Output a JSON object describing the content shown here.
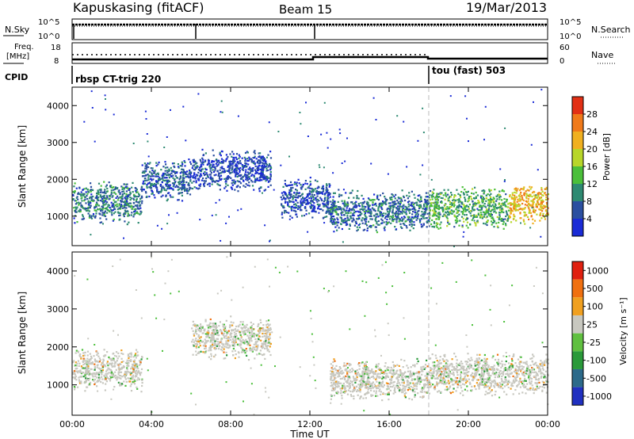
{
  "header": {
    "site": "Kapuskasing (fitACF)",
    "beam": "Beam 15",
    "date": "19/Mar/2013"
  },
  "nsky_panel": {
    "left_label": "N.Sky",
    "right_label": "N.Search",
    "left_ticks": [
      "10^5",
      "10^0"
    ],
    "right_ticks": [
      "10^5",
      "10^0"
    ]
  },
  "freq_panel": {
    "left_label_line1": "Freq.",
    "left_label_line2": "[MHz]",
    "right_label": "Nave",
    "left_ticks": [
      "18",
      "8"
    ],
    "right_ticks": [
      "60",
      "0"
    ]
  },
  "cpid_panel": {
    "label": "CPID",
    "programs": [
      {
        "name": "rbsp CT-trig 220",
        "start_hour": 0
      },
      {
        "name": "tou (fast) 503",
        "start_hour": 18
      }
    ]
  },
  "x_axis": {
    "label": "Time UT",
    "ticks": [
      "00:00",
      "04:00",
      "08:00",
      "12:00",
      "16:00",
      "20:00",
      "00:00"
    ]
  },
  "chart_data": [
    {
      "type": "heatmap",
      "name": "power",
      "ylabel": "Slant Range [km]",
      "yticks": [
        "1000",
        "2000",
        "3000",
        "4000"
      ],
      "ylim": [
        200,
        4500
      ],
      "xlim_hours": [
        0,
        24
      ],
      "colorbar": {
        "title": "Power [dB]",
        "ticks": [
          "4",
          "8",
          "12",
          "16",
          "20",
          "24",
          "28"
        ],
        "range": [
          0,
          30
        ],
        "colors": [
          "#1a2bd6",
          "#2b4fa0",
          "#2e8a72",
          "#4bbf3a",
          "#b8d62a",
          "#f0b020",
          "#f07a1a",
          "#e23015"
        ]
      },
      "echo_regions": [
        {
          "t_start": 0.0,
          "t_end": 3.5,
          "range_center_km": 1400,
          "value": 8
        },
        {
          "t_start": 3.5,
          "t_end": 6.0,
          "range_center_km": 2000,
          "value": 6
        },
        {
          "t_start": 6.0,
          "t_end": 10.0,
          "range_center_km": 2250,
          "value": 4
        },
        {
          "t_start": 10.5,
          "t_end": 13.0,
          "range_center_km": 1500,
          "value": 5
        },
        {
          "t_start": 13.0,
          "t_end": 18.0,
          "range_center_km": 1150,
          "value": 7
        },
        {
          "t_start": 18.0,
          "t_end": 22.0,
          "range_center_km": 1250,
          "value": 12
        },
        {
          "t_start": 22.0,
          "t_end": 24.0,
          "range_center_km": 1350,
          "value": 20
        }
      ]
    },
    {
      "type": "heatmap",
      "name": "velocity",
      "ylabel": "Slant Range [km]",
      "yticks": [
        "1000",
        "2000",
        "3000",
        "4000"
      ],
      "ylim": [
        200,
        4500
      ],
      "xlim_hours": [
        0,
        24
      ],
      "colorbar": {
        "title": "Velocity [m s⁻¹]",
        "ticks": [
          "1000",
          "500",
          "100",
          "25",
          "-25",
          "-100",
          "-500",
          "-1000"
        ],
        "colors": [
          "#2030c0",
          "#2c6a8a",
          "#2a9a3a",
          "#60c040",
          "#c8c8c0",
          "#f0a020",
          "#f07010",
          "#e02010"
        ]
      },
      "echo_regions": [
        {
          "t_start": 0.0,
          "t_end": 3.5,
          "range_center_km": 1400,
          "value": 0
        },
        {
          "t_start": 6.0,
          "t_end": 10.0,
          "range_center_km": 2250,
          "value": 0
        },
        {
          "t_start": 13.0,
          "t_end": 18.0,
          "range_center_km": 1150,
          "value": 0
        },
        {
          "t_start": 18.0,
          "t_end": 24.0,
          "range_center_km": 1300,
          "value": 0
        }
      ]
    }
  ]
}
